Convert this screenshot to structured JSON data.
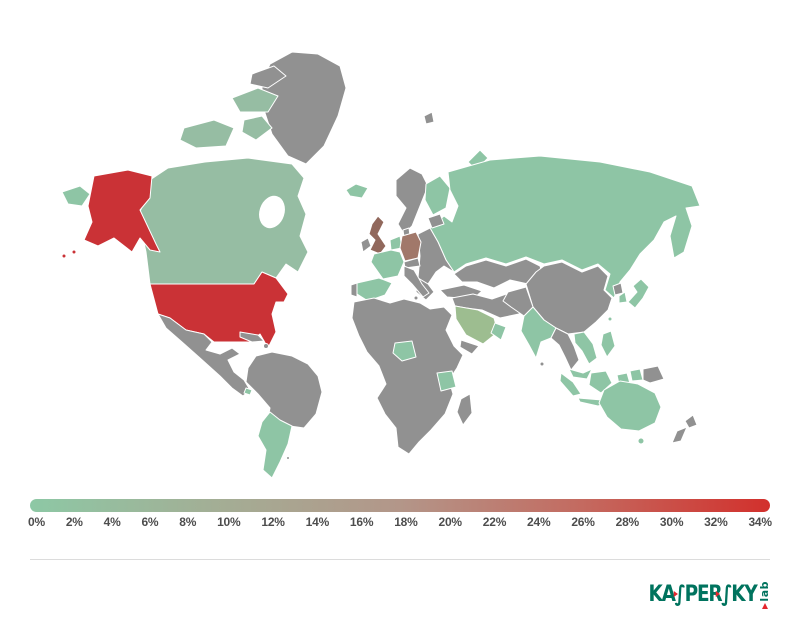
{
  "page": {
    "background": "#ffffff"
  },
  "chart_data": {
    "type": "heatmap",
    "subtype": "world-choropleth-map",
    "title": "",
    "unit": "%",
    "legend_position": "bottom",
    "scale": {
      "min": 0,
      "max": 34,
      "tick_labels": [
        "0%",
        "2%",
        "4%",
        "6%",
        "8%",
        "10%",
        "12%",
        "14%",
        "16%",
        "18%",
        "20%",
        "22%",
        "24%",
        "26%",
        "28%",
        "30%",
        "32%",
        "34%"
      ]
    },
    "values_estimated_from_color": true,
    "countries": [
      {
        "name": "United States",
        "value": 33
      },
      {
        "name": "United Kingdom",
        "value": 16
      },
      {
        "name": "Germany",
        "value": 13
      },
      {
        "name": "Saudi Arabia",
        "value": 5
      },
      {
        "name": "Canada",
        "value": 4
      },
      {
        "name": "Russia",
        "value": 2
      },
      {
        "name": "France",
        "value": 2
      },
      {
        "name": "Spain",
        "value": 2
      },
      {
        "name": "Netherlands/Belgium",
        "value": 2
      },
      {
        "name": "Finland",
        "value": 2
      },
      {
        "name": "Iceland",
        "value": 2
      },
      {
        "name": "India",
        "value": 2
      },
      {
        "name": "Japan",
        "value": 2
      },
      {
        "name": "South Korea",
        "value": 2
      },
      {
        "name": "Vietnam",
        "value": 2
      },
      {
        "name": "Malaysia",
        "value": 2
      },
      {
        "name": "Indonesia",
        "value": 2
      },
      {
        "name": "Philippines",
        "value": 2
      },
      {
        "name": "Taiwan",
        "value": 2
      },
      {
        "name": "Australia",
        "value": 2
      },
      {
        "name": "Argentina",
        "value": 2
      },
      {
        "name": "Chile",
        "value": 2
      },
      {
        "name": "Nigeria",
        "value": 2
      },
      {
        "name": "Tanzania",
        "value": 2
      },
      {
        "name": "Oman",
        "value": 2
      },
      {
        "name": "Costa Rica",
        "value": 2
      },
      {
        "name": "Other countries (gray)",
        "value": null
      }
    ]
  },
  "map": {
    "ocean_color": "#ffffff",
    "border_color": "#ffffff",
    "palette": {
      "na": "#919191",
      "green2": "#8ec5a5",
      "green4": "#96bda3",
      "green5": "#9dbd90",
      "brown13": "#a1786a",
      "brown16": "#91685c",
      "red33": "#ca3236"
    },
    "regions": {
      "greenland": "na",
      "ellesmere": "na",
      "canada": "green4",
      "arctic1": "green4",
      "arctic2": "green4",
      "arctic3": "green4",
      "alaska": "red33",
      "aleutian1": "red33",
      "aleutian2": "red33",
      "usa": "red33",
      "chukotka": "green2",
      "mexico": "na",
      "cuba": "na",
      "hispaniola": "na",
      "costarica": "green2",
      "southamerica": "na",
      "argentina-chile": "green2",
      "falkland": "na",
      "iceland": "green2",
      "uk": "brown16",
      "ireland": "na",
      "norway-sweden": "na",
      "denmark": "na",
      "finland": "green2",
      "baltics": "na",
      "russia": "green2",
      "novaya-zemlya": "green2",
      "svalbard": "na",
      "e-europe": "na",
      "balkans": "na",
      "italy": "na",
      "sicily": "na",
      "alps": "na",
      "netherlands": "green2",
      "germany": "brown13",
      "france": "green2",
      "spain": "green2",
      "portugal": "na",
      "turkey": "na",
      "mideast": "na",
      "saudi": "green5",
      "oman": "green2",
      "yemen": "na",
      "africa": "na",
      "nigeria": "green2",
      "tanzania": "green2",
      "madagascar": "na",
      "centralasia": "na",
      "china": "na",
      "afgpak": "na",
      "india": "green2",
      "srilanka": "na",
      "myanmar-thai": "na",
      "vietnam": "green2",
      "malaysia": "green2",
      "sumatra": "green2",
      "java": "green2",
      "borneo": "green2",
      "sulawesi": "green2",
      "wpapua": "green2",
      "png": "na",
      "philippines": "green2",
      "taiwan": "green2",
      "japan": "green2",
      "skorea": "green2",
      "nkorea": "na",
      "australia": "green2",
      "tasmania": "green2",
      "nz1": "na",
      "nz2": "na"
    }
  },
  "legend": {
    "gradient_stops": [
      "#8dc8a5",
      "#a3ae95",
      "#b39689",
      "#c4695f",
      "#d2302c"
    ],
    "ticks": [
      "0%",
      "2%",
      "4%",
      "6%",
      "8%",
      "10%",
      "12%",
      "14%",
      "16%",
      "18%",
      "20%",
      "22%",
      "24%",
      "26%",
      "28%",
      "30%",
      "32%",
      "34%"
    ]
  },
  "footer": {
    "divider_color": "#dcdcdc",
    "brand": "KASPERSKY",
    "brand_display": "KA∫PER∫KY",
    "brand_suffix": "lab",
    "brand_color": "#00735e",
    "accent_color": "#e3262d"
  }
}
